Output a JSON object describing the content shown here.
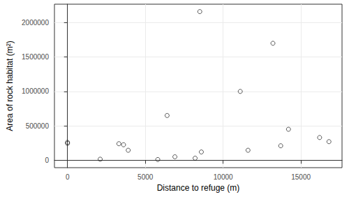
{
  "chart_data": {
    "type": "scatter",
    "x_label": "Distance to refuge (m)",
    "y_label": "Area of rock habitat (m²)",
    "x": [
      0,
      0,
      2100,
      3300,
      3600,
      3900,
      5800,
      6400,
      6900,
      8200,
      8500,
      8600,
      11100,
      11600,
      13200,
      13700,
      14200,
      16200,
      16800
    ],
    "values": [
      260000,
      245000,
      15000,
      240000,
      225000,
      145000,
      10000,
      650000,
      50000,
      30000,
      2160000,
      120000,
      1000000,
      145000,
      1700000,
      210000,
      450000,
      330000,
      270000
    ],
    "xlim": [
      -840,
      17640
    ],
    "ylim": [
      -108000,
      2268000
    ],
    "xticks": [
      0,
      5000,
      10000,
      15000
    ],
    "yticks": [
      0,
      500000,
      1000000,
      1500000,
      2000000
    ],
    "grid": true,
    "marker": "hollow circle",
    "color": "#000000"
  }
}
